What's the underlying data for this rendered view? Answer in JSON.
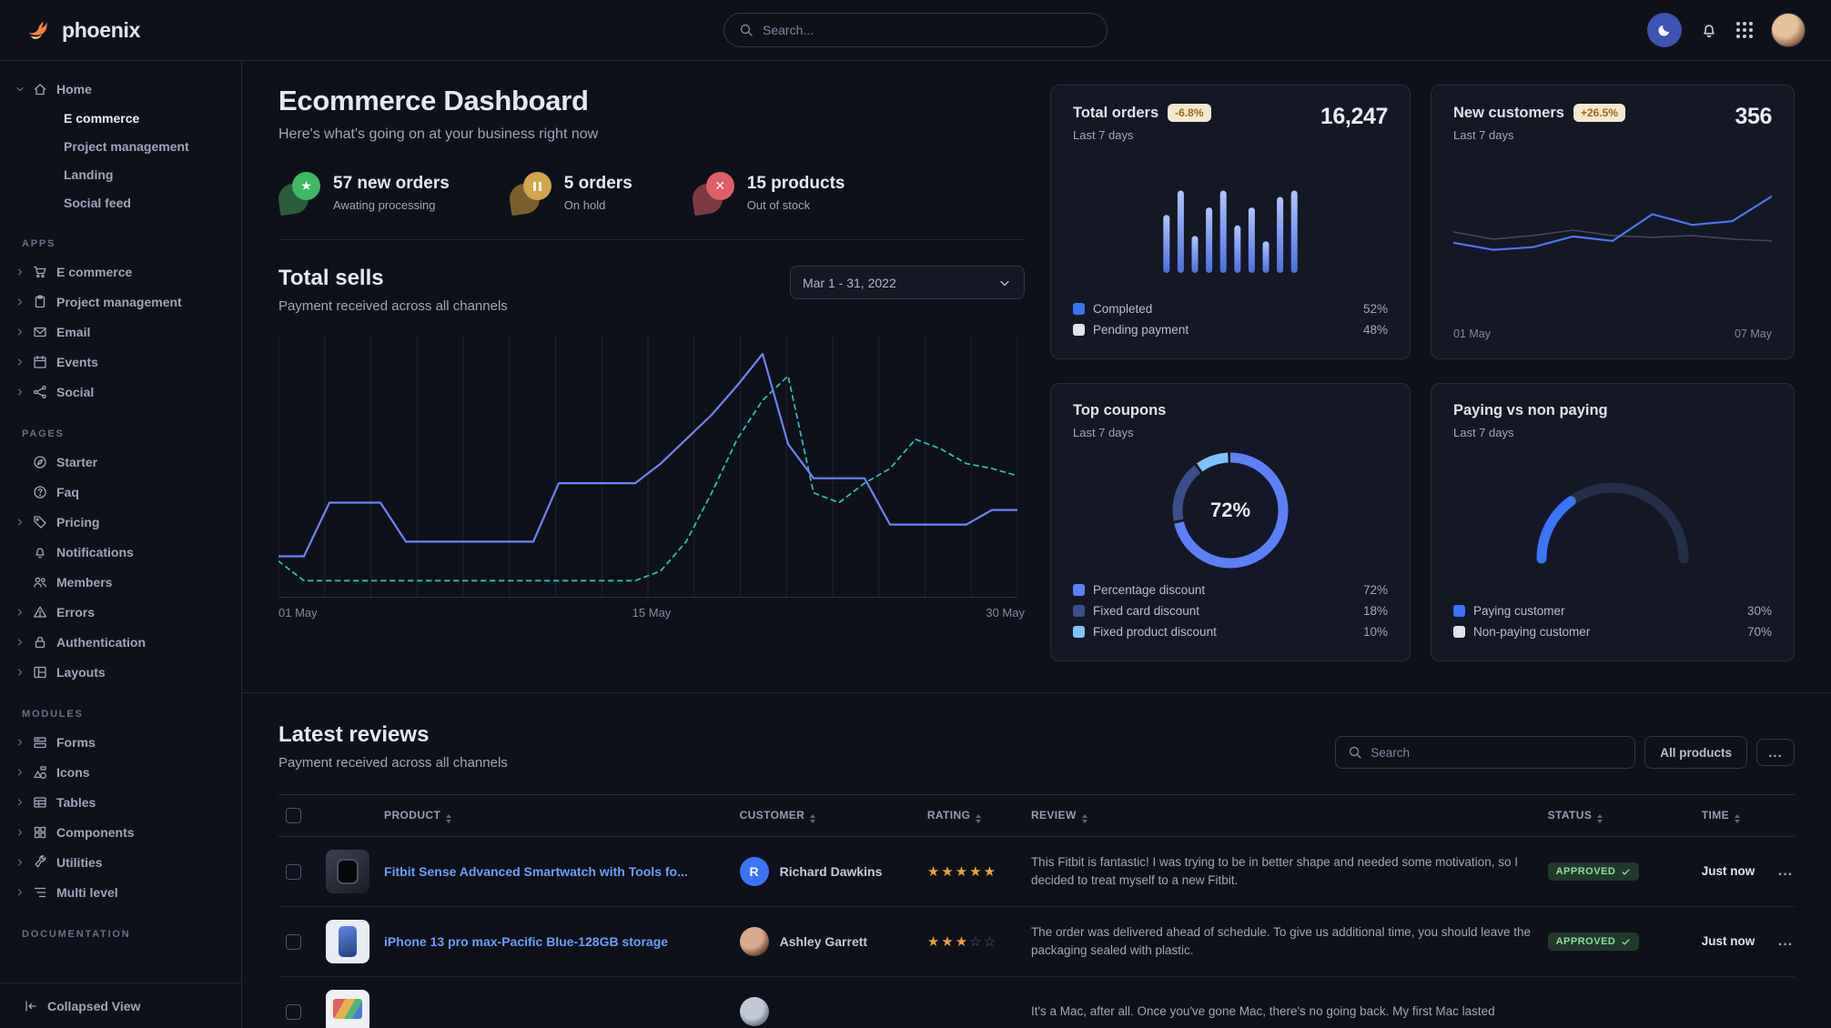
{
  "brand": {
    "name": "phoenix",
    "logo_icon": "phoenix-bird"
  },
  "topnav": {
    "search_placeholder": "Search...",
    "icons": [
      "moon",
      "bell",
      "apps-grid",
      "avatar"
    ]
  },
  "sidebar": {
    "groups": [
      {
        "label": null,
        "items": [
          {
            "label": "Home",
            "icon": "house",
            "caret": "down",
            "children": [
              {
                "label": "E commerce",
                "active": true
              },
              {
                "label": "Project management",
                "active": false
              },
              {
                "label": "Landing",
                "active": false
              },
              {
                "label": "Social feed",
                "active": false
              }
            ]
          }
        ]
      },
      {
        "label": "APPS",
        "items": [
          {
            "label": "E commerce",
            "icon": "cart",
            "caret": "right"
          },
          {
            "label": "Project management",
            "icon": "clipboard",
            "caret": "right"
          },
          {
            "label": "Email",
            "icon": "envelope",
            "caret": "right"
          },
          {
            "label": "Events",
            "icon": "calendar",
            "caret": "right"
          },
          {
            "label": "Social",
            "icon": "share",
            "caret": "right"
          }
        ]
      },
      {
        "label": "PAGES",
        "items": [
          {
            "label": "Starter",
            "icon": "compass"
          },
          {
            "label": "Faq",
            "icon": "question"
          },
          {
            "label": "Pricing",
            "icon": "tag",
            "caret": "right"
          },
          {
            "label": "Notifications",
            "icon": "bell"
          },
          {
            "label": "Members",
            "icon": "users"
          },
          {
            "label": "Errors",
            "icon": "warning",
            "caret": "right"
          },
          {
            "label": "Authentication",
            "icon": "lock",
            "caret": "right"
          },
          {
            "label": "Layouts",
            "icon": "layout",
            "caret": "right"
          }
        ]
      },
      {
        "label": "MODULES",
        "items": [
          {
            "label": "Forms",
            "icon": "form",
            "caret": "right"
          },
          {
            "label": "Icons",
            "icon": "shapes",
            "caret": "right"
          },
          {
            "label": "Tables",
            "icon": "table",
            "caret": "right"
          },
          {
            "label": "Components",
            "icon": "puzzle",
            "caret": "right"
          },
          {
            "label": "Utilities",
            "icon": "wrench",
            "caret": "right"
          },
          {
            "label": "Multi level",
            "icon": "multilevel",
            "caret": "right"
          }
        ]
      },
      {
        "label": "DOCUMENTATION",
        "items": []
      }
    ],
    "collapsed_label": "Collapsed View",
    "collapsed_icon": "collapse-left"
  },
  "header": {
    "title": "Ecommerce Dashboard",
    "subtitle": "Here's what's going on at your business right now"
  },
  "stats": [
    {
      "value": "57 new orders",
      "label": "Awating processing",
      "icon": "star",
      "circle_color": "#3cba64",
      "leaf_color": "#2c5c3d"
    },
    {
      "value": "5 orders",
      "label": "On hold",
      "icon": "pause",
      "circle_color": "#d5a44c",
      "leaf_color": "#7a5f2c"
    },
    {
      "value": "15 products",
      "label": "Out of stock",
      "icon": "x",
      "circle_color": "#dd6069",
      "leaf_color": "#7c3b43"
    }
  ],
  "sells": {
    "title": "Total sells",
    "subtitle": "Payment received across all channels",
    "range": "Mar 1 - 31, 2022"
  },
  "cards": {
    "total_orders": {
      "title": "Total orders",
      "badge": "-6.8%",
      "period": "Last 7 days",
      "value": "16,247",
      "legend": [
        {
          "label": "Completed",
          "value": "52%",
          "color": "#3874ff"
        },
        {
          "label": "Pending payment",
          "value": "48%",
          "color": "#dfe3ec"
        }
      ]
    },
    "new_customers": {
      "title": "New customers",
      "badge": "+26.5%",
      "period": "Last 7 days",
      "value": "356"
    },
    "top_coupons": {
      "title": "Top coupons",
      "period": "Last 7 days",
      "legend": [
        {
          "label": "Percentage discount",
          "value": "72%",
          "color": "#5b80f7"
        },
        {
          "label": "Fixed card discount",
          "value": "18%",
          "color": "#3a4e8c"
        },
        {
          "label": "Fixed product discount",
          "value": "10%",
          "color": "#7cc2ff"
        }
      ]
    },
    "paying": {
      "title": "Paying vs non paying",
      "period": "Last 7 days",
      "legend": [
        {
          "label": "Paying customer",
          "value": "30%",
          "color": "#3874ff"
        },
        {
          "label": "Non-paying customer",
          "value": "70%",
          "color": "#dfe3ec"
        }
      ]
    }
  },
  "chart_data": [
    {
      "id": "total-sells",
      "type": "line",
      "title": "Total sells",
      "x_labels": [
        "01 May",
        "15 May",
        "30 May"
      ],
      "ylim": [
        0,
        100
      ],
      "grid": "vertical",
      "series": [
        {
          "name": "current",
          "style": "solid",
          "color": "#6d83fb",
          "width": 2.2,
          "values": [
            14,
            14,
            36,
            36,
            36,
            20,
            20,
            20,
            20,
            20,
            20,
            44,
            44,
            44,
            44,
            52,
            62,
            72,
            84,
            97,
            60,
            46,
            46,
            46,
            27,
            27,
            27,
            27,
            33,
            33
          ]
        },
        {
          "name": "previous",
          "style": "dashed",
          "color": "#35b8ba",
          "width": 1.8,
          "values": [
            12,
            4,
            4,
            4,
            4,
            4,
            4,
            4,
            4,
            4,
            4,
            4,
            4,
            4,
            4,
            8,
            20,
            40,
            62,
            78,
            88,
            40,
            36,
            44,
            50,
            62,
            58,
            52,
            50,
            47
          ]
        }
      ]
    },
    {
      "id": "total-orders-bars",
      "type": "bar",
      "values": [
        55,
        78,
        35,
        62,
        78,
        45,
        62,
        30,
        72,
        78
      ],
      "color_top": "#b0c4ff",
      "color_bottom": "#4a6ee0"
    },
    {
      "id": "new-customers",
      "type": "line",
      "x_labels": [
        "01 May",
        "07 May"
      ],
      "ylim": [
        0,
        100
      ],
      "series": [
        {
          "name": "customers",
          "style": "solid",
          "color": "#4d74f5",
          "width": 2.2,
          "values": [
            38,
            30,
            33,
            45,
            40,
            70,
            58,
            62,
            90
          ]
        },
        {
          "name": "previous",
          "style": "solid",
          "color": "#596180",
          "width": 1.6,
          "opacity": 0.65,
          "values": [
            50,
            42,
            46,
            52,
            46,
            44,
            46,
            42,
            40
          ]
        }
      ]
    },
    {
      "id": "top-coupons",
      "type": "donut",
      "center_label": "72%",
      "segments": [
        {
          "label": "Percentage discount",
          "value": 72,
          "color": "#5b80f7"
        },
        {
          "label": "Fixed card discount",
          "value": 18,
          "color": "#3a4e8c"
        },
        {
          "label": "Fixed product discount",
          "value": 10,
          "color": "#7cc2ff"
        }
      ]
    },
    {
      "id": "paying-gauge",
      "type": "gauge",
      "value": 30,
      "max": 100,
      "color": "#3874ff",
      "track": "#242d49"
    }
  ],
  "reviews": {
    "title": "Latest reviews",
    "subtitle": "Payment received across all channels",
    "search_placeholder": "Search",
    "filter_label": "All products",
    "more_label": "...",
    "actions_label": "...",
    "columns": [
      "PRODUCT",
      "CUSTOMER",
      "RATING",
      "REVIEW",
      "STATUS",
      "TIME"
    ],
    "rows": [
      {
        "product": "Fitbit Sense Advanced Smartwatch with Tools fo...",
        "thumb": "watch",
        "customer": "Richard Dawkins",
        "avatar": "initial",
        "avatar_text": "R",
        "rating": 5,
        "review": "This Fitbit is fantastic! I was trying to be in better shape and needed some motivation, so I decided to treat myself to a new Fitbit.",
        "status": "APPROVED",
        "time": "Just now"
      },
      {
        "product": "iPhone 13 pro max-Pacific Blue-128GB storage",
        "thumb": "iphone",
        "customer": "Ashley Garrett",
        "avatar": "photo-f",
        "avatar_text": "",
        "rating": 3,
        "review": "The order was delivered ahead of schedule. To give us additional time, you should leave the packaging sealed with plastic.",
        "status": "APPROVED",
        "time": "Just now"
      },
      {
        "product": "",
        "thumb": "macbook",
        "customer": "",
        "avatar": "photo-m",
        "avatar_text": "",
        "rating": null,
        "review": "It's a Mac, after all. Once you've gone Mac, there's no going back. My first Mac lasted",
        "status": "",
        "time": ""
      }
    ]
  }
}
